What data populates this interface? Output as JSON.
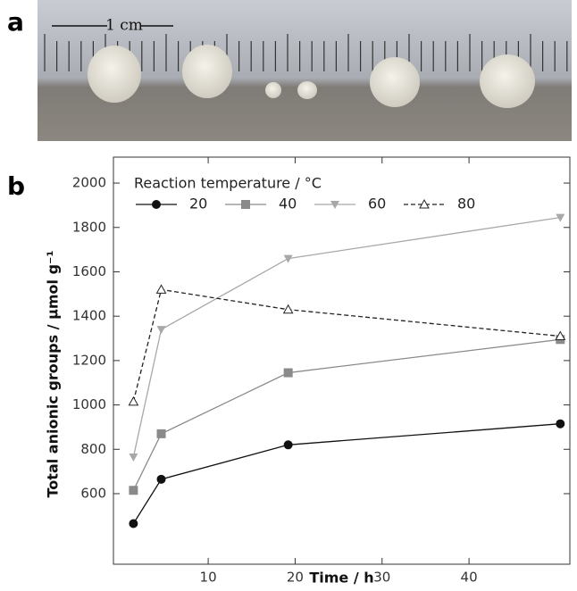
{
  "panel_labels": [
    "a",
    "b"
  ],
  "scale_bar": "1 cm",
  "chart_data": {
    "type": "line",
    "xlabel": "Time / h",
    "ylabel": "Total anionic groups / µmol g⁻¹",
    "legend_title": "Reaction temperature / °C",
    "legend": "upper left",
    "x": [
      1.4,
      4.6,
      19.2,
      50.5
    ],
    "xlim": [
      -0.9,
      51.6
    ],
    "xticks": [
      10,
      20,
      30,
      40
    ],
    "ylim": [
      282,
      2117
    ],
    "yticks": [
      600,
      800,
      1000,
      1200,
      1400,
      1600,
      1800,
      2000
    ],
    "series": [
      {
        "name": "20",
        "color": "#111111",
        "marker": "circle",
        "dashed": false,
        "values": [
          465,
          665,
          820,
          915
        ]
      },
      {
        "name": "40",
        "color": "#8a8a8a",
        "marker": "square",
        "dashed": false,
        "values": [
          615,
          870,
          1145,
          1295
        ]
      },
      {
        "name": "60",
        "color": "#a8a8a8",
        "marker": "triangle-down",
        "dashed": false,
        "values": [
          765,
          1340,
          1660,
          1845
        ]
      },
      {
        "name": "80",
        "color": "#222222",
        "marker": "triangle-up-open",
        "dashed": true,
        "values": [
          1015,
          1520,
          1430,
          1310
        ]
      }
    ]
  }
}
